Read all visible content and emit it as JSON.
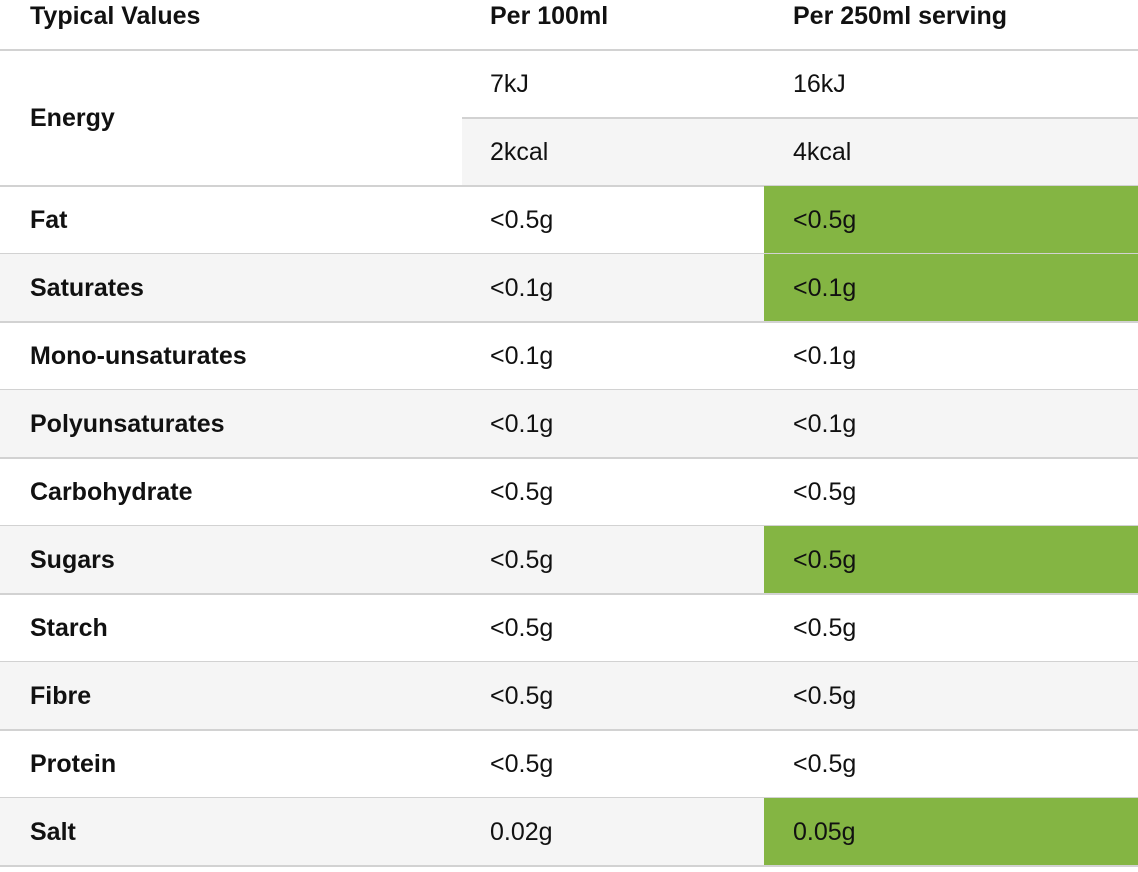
{
  "header": [
    "Typical Values",
    "Per 100ml",
    "Per 250ml serving"
  ],
  "energy": {
    "label": "Energy",
    "values": [
      [
        "7kJ",
        "16kJ"
      ],
      [
        "2kcal",
        "4kcal"
      ]
    ]
  },
  "highlight_color": "#84b543",
  "rows": [
    {
      "label": "Fat",
      "values": [
        "<0.5g",
        "<0.5g"
      ],
      "highlight": true
    },
    {
      "label": "Saturates",
      "values": [
        "<0.1g",
        "<0.1g"
      ],
      "highlight": true
    },
    {
      "label": "Mono-unsaturates",
      "values": [
        "<0.1g",
        "<0.1g"
      ],
      "highlight": false
    },
    {
      "label": "Polyunsaturates",
      "values": [
        "<0.1g",
        "<0.1g"
      ],
      "highlight": false
    },
    {
      "label": "Carbohydrate",
      "values": [
        "<0.5g",
        "<0.5g"
      ],
      "highlight": false
    },
    {
      "label": "Sugars",
      "values": [
        "<0.5g",
        "<0.5g"
      ],
      "highlight": true
    },
    {
      "label": "Starch",
      "values": [
        "<0.5g",
        "<0.5g"
      ],
      "highlight": false
    },
    {
      "label": "Fibre",
      "values": [
        "<0.5g",
        "<0.5g"
      ],
      "highlight": false
    },
    {
      "label": "Protein",
      "values": [
        "<0.5g",
        "<0.5g"
      ],
      "highlight": false
    },
    {
      "label": "Salt",
      "values": [
        "0.02g",
        "0.05g"
      ],
      "highlight": true
    }
  ]
}
